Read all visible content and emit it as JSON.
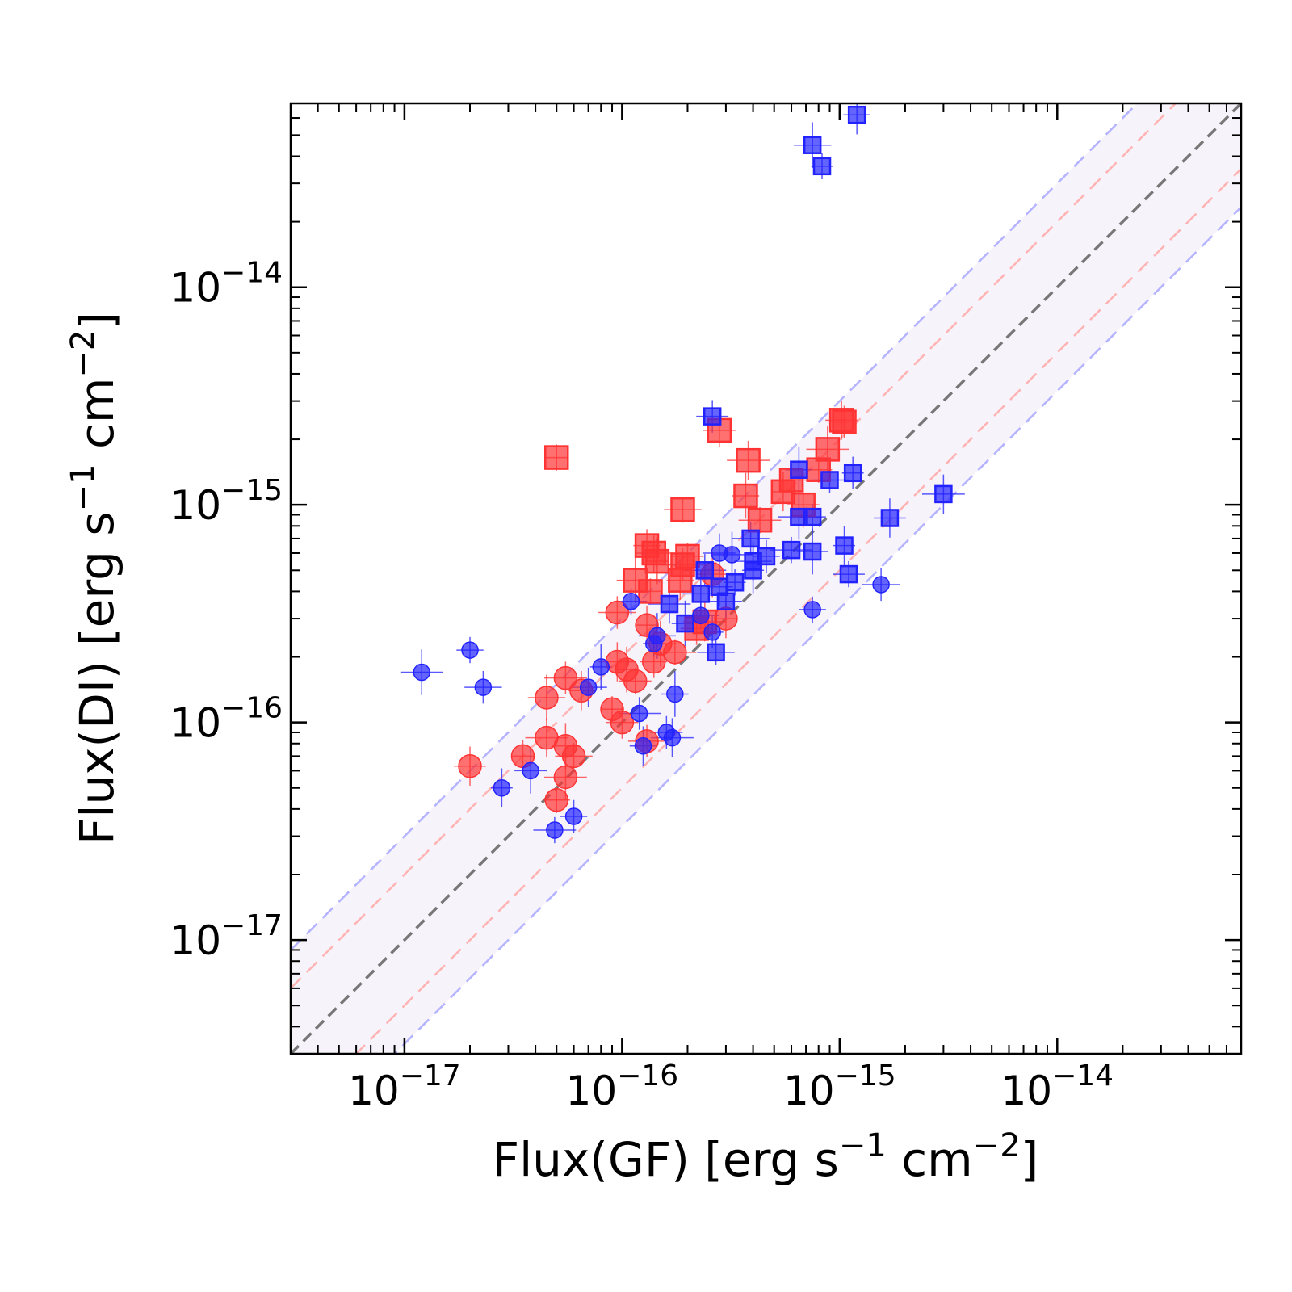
{
  "chart_data": {
    "type": "scatter",
    "x_scale": "log",
    "y_scale": "log",
    "xlim": [
      3e-18,
      7e-14
    ],
    "ylim": [
      3e-18,
      7e-14
    ],
    "grid": false,
    "xlabel": {
      "base": "Flux(GF) [erg s",
      "exp1": "−1",
      "mid": " cm",
      "exp2": "−2",
      "end": "]"
    },
    "ylabel": {
      "base": "Flux(DI) [erg s",
      "exp1": "−1",
      "mid": " cm",
      "exp2": "−2",
      "end": "]"
    },
    "x_ticks": [
      {
        "value": 1e-17,
        "base": "10",
        "exp": "−17"
      },
      {
        "value": 1e-16,
        "base": "10",
        "exp": "−16"
      },
      {
        "value": 1e-15,
        "base": "10",
        "exp": "−15"
      },
      {
        "value": 1e-14,
        "base": "10",
        "exp": "−14"
      }
    ],
    "y_ticks": [
      {
        "value": 1e-17,
        "base": "10",
        "exp": "−17"
      },
      {
        "value": 1e-16,
        "base": "10",
        "exp": "−16"
      },
      {
        "value": 1e-15,
        "base": "10",
        "exp": "−15"
      },
      {
        "value": 1e-14,
        "base": "10",
        "exp": "−14"
      }
    ],
    "reference_lines": [
      {
        "kind": "one-to-one",
        "factor": 1,
        "color": "#777777"
      },
      {
        "kind": "band",
        "factor": 2,
        "color": "#ffb3b3"
      },
      {
        "kind": "band",
        "factor": 3,
        "color": "#b3b3ff"
      }
    ],
    "colors": {
      "red": "#ff3333",
      "blue": "#2222ff",
      "band_fill": "#f7f3fb"
    },
    "series": [
      {
        "color": "red",
        "marker": "square",
        "points": [
          [
            5e-17,
            1.65e-15
          ],
          [
            2.8e-16,
            2.2e-15
          ],
          [
            3.8e-16,
            1.6e-15
          ],
          [
            3.7e-16,
            1.1e-15
          ],
          [
            1.9e-16,
            9.5e-16
          ],
          [
            1.05e-15,
            2.4e-15
          ],
          [
            1.02e-15,
            2.45e-15
          ],
          [
            8.8e-16,
            1.8e-15
          ],
          [
            8e-16,
            1.45e-15
          ],
          [
            6e-16,
            1.3e-15
          ],
          [
            5.5e-16,
            1.15e-15
          ],
          [
            6.8e-16,
            1e-15
          ],
          [
            4.3e-16,
            8.5e-16
          ],
          [
            1.3e-16,
            6.5e-16
          ],
          [
            1.4e-16,
            6e-16
          ],
          [
            1.45e-16,
            5.5e-16
          ],
          [
            2e-16,
            5.8e-16
          ],
          [
            1.9e-16,
            5.3e-16
          ],
          [
            1.85e-16,
            4.5e-16
          ],
          [
            1.15e-16,
            4.5e-16
          ],
          [
            1.35e-16,
            4e-16
          ],
          [
            2.2e-16,
            2.7e-16
          ],
          [
            2.4e-16,
            2.9e-16
          ]
        ]
      },
      {
        "color": "red",
        "marker": "circle",
        "points": [
          [
            9.5e-17,
            3.2e-16
          ],
          [
            1.3e-16,
            2.8e-16
          ],
          [
            1.5e-16,
            2.3e-16
          ],
          [
            1.75e-16,
            2.1e-16
          ],
          [
            1.4e-16,
            1.9e-16
          ],
          [
            9.5e-17,
            1.9e-16
          ],
          [
            1.05e-16,
            1.75e-16
          ],
          [
            1.15e-16,
            1.55e-16
          ],
          [
            5.5e-17,
            1.6e-16
          ],
          [
            6.5e-17,
            1.4e-16
          ],
          [
            4.5e-17,
            1.3e-16
          ],
          [
            9e-17,
            1.15e-16
          ],
          [
            1e-16,
            1e-16
          ],
          [
            4.5e-17,
            8.5e-17
          ],
          [
            5.5e-17,
            7.8e-17
          ],
          [
            6e-17,
            7e-17
          ],
          [
            3.5e-17,
            7e-17
          ],
          [
            2e-17,
            6.3e-17
          ],
          [
            5.5e-17,
            5.6e-17
          ],
          [
            5e-17,
            4.4e-17
          ],
          [
            1.3e-16,
            8.2e-17
          ],
          [
            3e-16,
            3e-16
          ],
          [
            2.6e-16,
            4.8e-16
          ]
        ]
      },
      {
        "color": "blue",
        "marker": "square",
        "points": [
          [
            1.2e-15,
            6.2e-14
          ],
          [
            7.5e-16,
            4.5e-14
          ],
          [
            8.3e-16,
            3.6e-14
          ],
          [
            2.6e-16,
            2.55e-15
          ],
          [
            3e-15,
            1.12e-15
          ],
          [
            6.5e-16,
            1.45e-15
          ],
          [
            9e-16,
            1.3e-15
          ],
          [
            1.15e-15,
            1.4e-15
          ],
          [
            1.7e-15,
            8.7e-16
          ],
          [
            6.5e-16,
            8.8e-16
          ],
          [
            7.5e-16,
            8.8e-16
          ],
          [
            3.9e-16,
            7e-16
          ],
          [
            1.05e-15,
            6.5e-16
          ],
          [
            7.5e-16,
            6.1e-16
          ],
          [
            6e-16,
            6.2e-16
          ],
          [
            4.6e-16,
            5.8e-16
          ],
          [
            4e-16,
            5.5e-16
          ],
          [
            4e-16,
            5e-16
          ],
          [
            1.1e-15,
            4.8e-16
          ],
          [
            2.4e-16,
            5e-16
          ],
          [
            2.8e-16,
            4.2e-16
          ],
          [
            2.3e-16,
            3.9e-16
          ],
          [
            3.3e-16,
            4.4e-16
          ],
          [
            3e-16,
            3.6e-16
          ],
          [
            1.65e-16,
            3.5e-16
          ],
          [
            1.95e-16,
            2.85e-16
          ],
          [
            2.7e-16,
            2.1e-16
          ]
        ]
      },
      {
        "color": "blue",
        "marker": "circle",
        "points": [
          [
            1.2e-17,
            1.7e-16
          ],
          [
            2e-17,
            2.15e-16
          ],
          [
            2.3e-17,
            1.45e-16
          ],
          [
            2.8e-17,
            5e-17
          ],
          [
            3.8e-17,
            6e-17
          ],
          [
            4.9e-17,
            3.2e-17
          ],
          [
            6e-17,
            3.7e-17
          ],
          [
            7e-17,
            1.45e-16
          ],
          [
            8e-17,
            1.8e-16
          ],
          [
            1.1e-16,
            3.6e-16
          ],
          [
            1.2e-16,
            1.1e-16
          ],
          [
            1.25e-16,
            7.8e-17
          ],
          [
            1.45e-16,
            2.5e-16
          ],
          [
            1.4e-16,
            2.3e-16
          ],
          [
            1.6e-16,
            9e-17
          ],
          [
            1.7e-16,
            8.5e-17
          ],
          [
            1.75e-16,
            1.35e-16
          ],
          [
            2.3e-16,
            3.1e-16
          ],
          [
            2.6e-16,
            2.6e-16
          ],
          [
            2.8e-16,
            6e-16
          ],
          [
            3.2e-16,
            5.9e-16
          ],
          [
            7.5e-16,
            3.3e-16
          ],
          [
            1.55e-15,
            4.3e-16
          ]
        ]
      }
    ]
  }
}
